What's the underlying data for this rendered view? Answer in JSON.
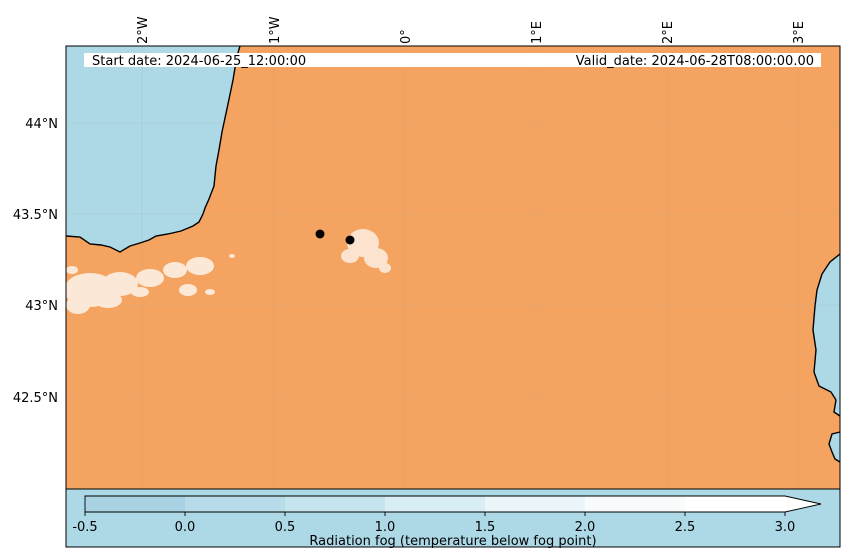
{
  "map": {
    "start_date": "Start date: 2024-06-25_12:00:00",
    "valid_date": "Valid_date: 2024-06-28T08:00:00.00",
    "lon_labels": [
      "2°W",
      "1°W",
      "0°",
      "1°E",
      "2°E",
      "3°E"
    ],
    "lat_labels": [
      "44°N",
      "43.5°N",
      "43°N",
      "42.5°N"
    ],
    "colors": {
      "sea": "#add8e6",
      "land": "#f4a460",
      "coast": "#000000",
      "fog_patch": "#ffffff",
      "marker": "#000000"
    },
    "markers_count": 2
  },
  "colorbar": {
    "label": "Radiation fog (temperature below fog point)",
    "ticks": [
      "-0.5",
      "0.0",
      "0.5",
      "1.0",
      "1.5",
      "2.0",
      "2.5",
      "3.0"
    ],
    "range": [
      -0.5,
      3.0
    ],
    "extend": "max",
    "segment_colors": [
      "#a9d3e2",
      "#b7dbe8",
      "#c6e4ee",
      "#d9eef4",
      "#eaf6f9",
      "#f7fbfc",
      "#ffffff"
    ]
  }
}
